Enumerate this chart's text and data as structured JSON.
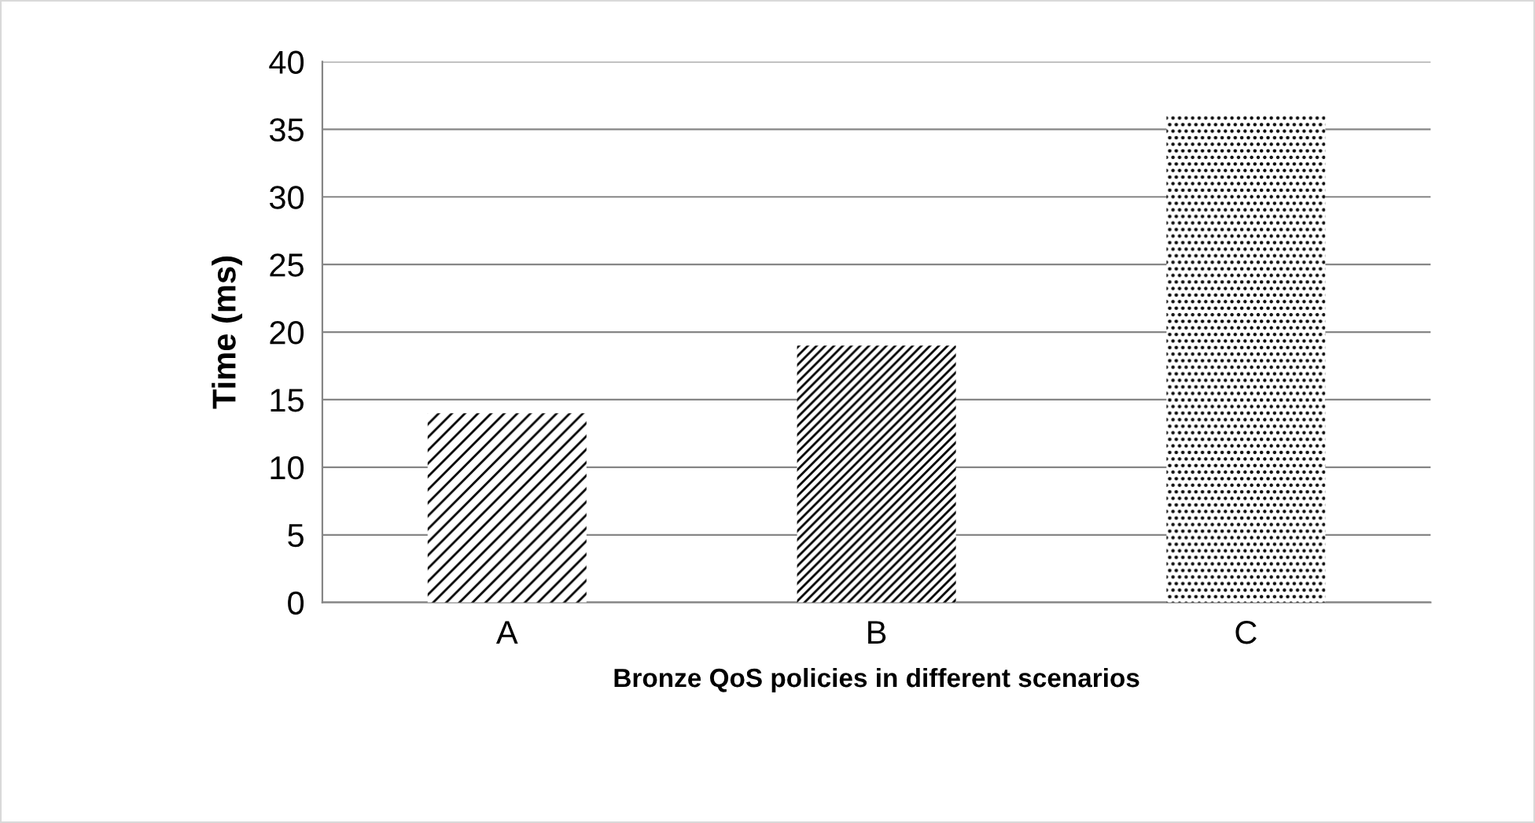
{
  "chart_data": {
    "type": "bar",
    "categories": [
      "A",
      "B",
      "C"
    ],
    "values": [
      14,
      19,
      36
    ],
    "colors": [
      "#000000",
      "#000000",
      "#000000"
    ],
    "xlabel": "Bronze QoS policies in different scenarios",
    "ylabel": "Time (ms)",
    "ylim": [
      0,
      40
    ],
    "yticks": [
      0,
      5,
      10,
      15,
      20,
      25,
      30,
      35,
      40
    ],
    "grid": "y",
    "legend": false
  }
}
